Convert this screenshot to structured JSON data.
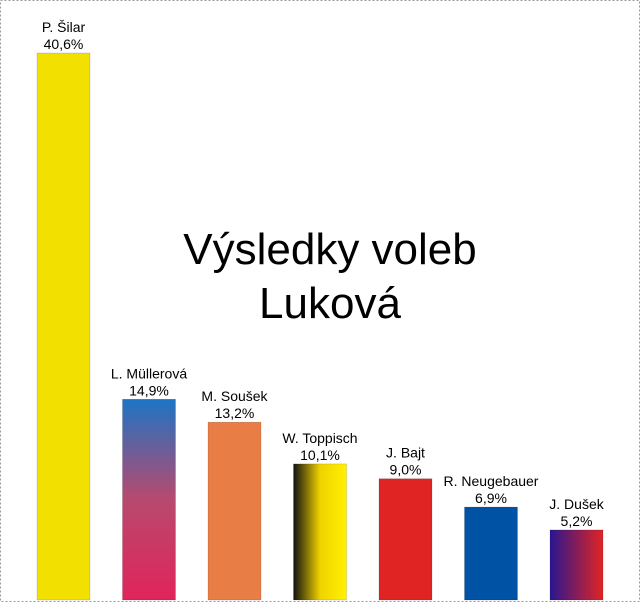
{
  "chart_data": {
    "type": "bar",
    "title_lines": [
      "Výsledky voleb",
      "Luková"
    ],
    "categories": [
      "P. Šilar",
      "L. Müllerová",
      "M. Soušek",
      "W. Toppisch",
      "J. Bajt",
      "R. Neugebauer",
      "J. Dušek"
    ],
    "values": [
      40.6,
      14.9,
      13.2,
      10.1,
      9.0,
      6.9,
      5.2
    ],
    "value_labels": [
      "40,6%",
      "14,9%",
      "13,2%",
      "10,1%",
      "9,0%",
      "6,9%",
      "5,2%"
    ],
    "ylim": [
      0,
      40.6
    ],
    "grid": false,
    "legend": "none",
    "bar_fills": [
      {
        "kind": "solid",
        "colors": [
          "#f2e000"
        ]
      },
      {
        "kind": "vertical",
        "colors": [
          "#1d74c4",
          "#b8496e",
          "#e0245a"
        ]
      },
      {
        "kind": "solid",
        "colors": [
          "#e87e46"
        ]
      },
      {
        "kind": "horizontal",
        "colors": [
          "#111111",
          "#f0d200",
          "#fff200"
        ]
      },
      {
        "kind": "solid",
        "colors": [
          "#e02424"
        ]
      },
      {
        "kind": "solid",
        "colors": [
          "#0052a4"
        ]
      },
      {
        "kind": "horizontal",
        "colors": [
          "#2a1690",
          "#e02424"
        ]
      }
    ]
  }
}
